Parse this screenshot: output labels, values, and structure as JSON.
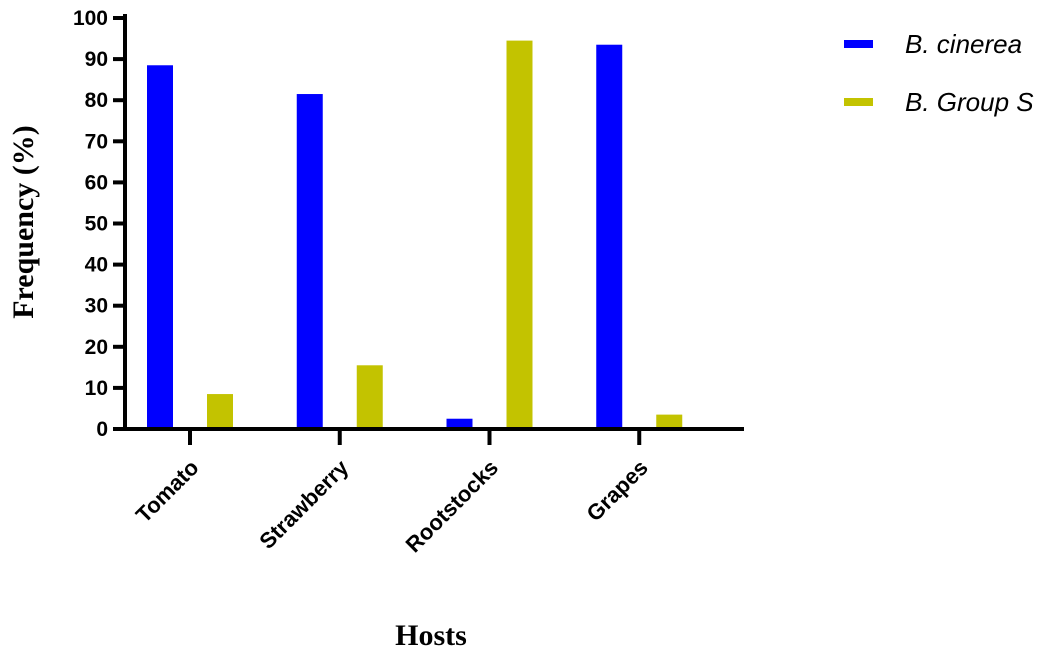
{
  "chart_data": {
    "type": "bar",
    "categories": [
      "Tomato",
      "Strawberry",
      "Rootstocks",
      "Grapes"
    ],
    "series": [
      {
        "name": "B. cinerea",
        "color": "#0000ff",
        "values": [
          88.5,
          81.5,
          2.5,
          93.5
        ]
      },
      {
        "name": "B. Group S",
        "color": "#c3c300",
        "values": [
          8.5,
          15.5,
          94.5,
          3.5
        ]
      }
    ],
    "title": "",
    "xlabel": "Hosts",
    "ylabel": "Frequency (%)",
    "ylim": [
      0,
      100
    ],
    "yticks": [
      "0",
      "10",
      "20",
      "30",
      "40",
      "50",
      "60",
      "70",
      "80",
      "90",
      "100"
    ],
    "grid": false,
    "legend_position": "top-right"
  }
}
